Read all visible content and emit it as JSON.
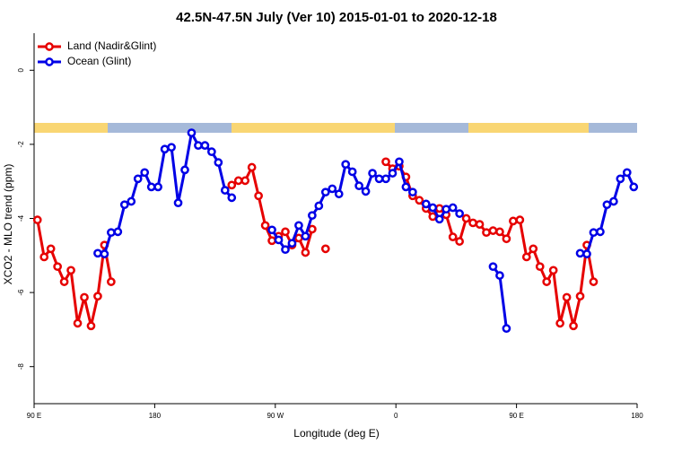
{
  "chart_data": {
    "type": "line",
    "title": "42.5N-47.5N July (Ver 10)   2015-01-01 to 2020-12-18",
    "xlabel": "Longitude (deg E)",
    "ylabel": "XCO2 - MLO trend (ppm)",
    "xlim": [
      90,
      540
    ],
    "ylim": [
      -9,
      1
    ],
    "xticks": [
      {
        "value": 90,
        "label": "90 E"
      },
      {
        "value": 180,
        "label": "180"
      },
      {
        "value": 270,
        "label": "90 W"
      },
      {
        "value": 360,
        "label": "0"
      },
      {
        "value": 450,
        "label": "90 E"
      },
      {
        "value": 540,
        "label": "180"
      }
    ],
    "yticks": [
      0,
      -2,
      -4,
      -6,
      -8
    ],
    "legend": "top-left",
    "series": [
      {
        "name": "Land (Nadir&Glint)",
        "color": "#e60000",
        "x": [
          92.5,
          97.5,
          102.5,
          107.5,
          112.5,
          117.5,
          122.5,
          127.5,
          132.5,
          137.5,
          142.5,
          147.5,
          192.5,
          237.5,
          242.5,
          247.5,
          252.5,
          257.5,
          262.5,
          267.5,
          272.5,
          277.5,
          282.5,
          287.5,
          292.5,
          297.5,
          302.5,
          307.5,
          330,
          352.5,
          357.5,
          362.5,
          367.5,
          372.5,
          377.5,
          382.5,
          387.5,
          392.5,
          397.5,
          402.5,
          407.5,
          412.5,
          417.5,
          422.5,
          427.5,
          432.5,
          437.5,
          442.5,
          447.5,
          452.5,
          457.5,
          462.5,
          467.5,
          472.5,
          477.5,
          482.5,
          487.5,
          492.5,
          497.5,
          502.5,
          507.5
        ],
        "values": [
          -4.04,
          -5.04,
          -4.82,
          -5.3,
          -5.71,
          -5.4,
          -6.83,
          -6.13,
          -6.9,
          -6.1,
          -4.72,
          -5.71,
          null,
          -3.1,
          -2.98,
          -2.98,
          -2.62,
          -3.39,
          -4.19,
          -4.6,
          -4.48,
          -4.36,
          -4.72,
          -4.53,
          -4.92,
          -4.29,
          null,
          -4.82,
          null,
          -2.47,
          -2.66,
          -2.59,
          -2.88,
          -3.39,
          -3.51,
          -3.73,
          -3.95,
          -3.73,
          -3.9,
          -4.5,
          -4.62,
          -4.0,
          -4.12,
          -4.16,
          -4.38,
          -4.33,
          -4.36,
          -4.55,
          -4.07,
          -4.04,
          -5.04,
          -4.82,
          -5.3,
          -5.71,
          -5.4,
          -6.83,
          -6.13,
          -6.9,
          -6.1,
          -4.72,
          -5.71
        ]
      },
      {
        "name": "Ocean (Glint)",
        "color": "#0000e6",
        "x": [
          137.5,
          142.5,
          147.5,
          152.5,
          157.5,
          162.5,
          167.5,
          172.5,
          177.5,
          182.5,
          187.5,
          192.5,
          197.5,
          202.5,
          207.5,
          212.5,
          217.5,
          222.5,
          227.5,
          232.5,
          237.5,
          252.5,
          267.5,
          272.5,
          277.5,
          282.5,
          287.5,
          292.5,
          297.5,
          302.5,
          307.5,
          312.5,
          317.5,
          322.5,
          327.5,
          332.5,
          337.5,
          342.5,
          347.5,
          352.5,
          357.5,
          362.5,
          367.5,
          372.5,
          377.5,
          382.5,
          387.5,
          392.5,
          397.5,
          402.5,
          407.5,
          420,
          432.5,
          437.5,
          442.5,
          470,
          497.5,
          502.5,
          507.5,
          512.5,
          517.5,
          522.5,
          527.5,
          532.5,
          537.5
        ],
        "values": [
          -4.94,
          -4.96,
          -4.38,
          -4.36,
          -3.63,
          -3.54,
          -2.93,
          -2.76,
          -3.15,
          -3.15,
          -2.13,
          -2.08,
          -3.58,
          -2.69,
          -1.69,
          -2.03,
          -2.03,
          -2.2,
          -2.49,
          -3.24,
          -3.44,
          null,
          -4.31,
          -4.58,
          -4.84,
          -4.67,
          -4.19,
          -4.48,
          -3.92,
          -3.66,
          -3.29,
          -3.2,
          -3.34,
          -2.54,
          -2.74,
          -3.12,
          -3.27,
          -2.78,
          -2.93,
          -2.93,
          -2.78,
          -2.47,
          -3.15,
          -3.29,
          null,
          -3.61,
          -3.71,
          -4.02,
          -3.75,
          -3.71,
          -3.87,
          null,
          -5.3,
          -5.54,
          -6.97,
          null,
          -4.94,
          -4.96,
          -4.38,
          -4.36,
          -3.63,
          -3.54,
          -2.93,
          -2.76,
          -3.15
        ]
      }
    ]
  }
}
